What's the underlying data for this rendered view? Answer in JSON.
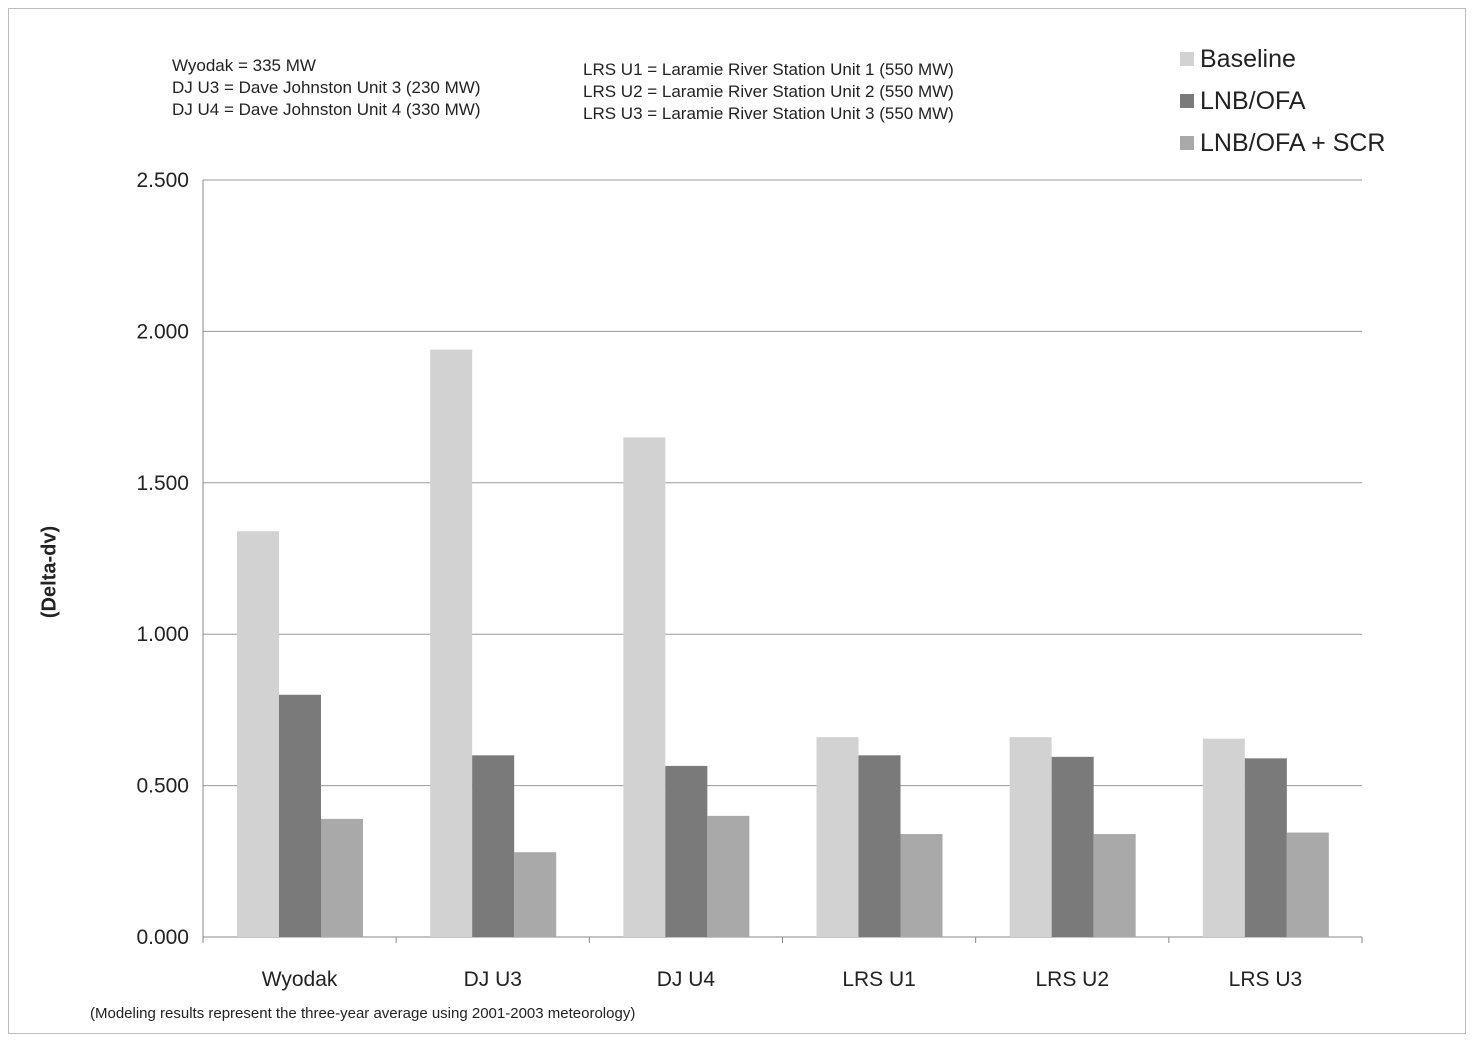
{
  "notes_left": [
    "Wyodak = 335 MW",
    "DJ U3 = Dave Johnston Unit 3 (230 MW)",
    "DJ U4 = Dave Johnston Unit 4 (330 MW)"
  ],
  "notes_right": [
    "LRS U1 = Laramie River Station Unit 1 (550 MW)",
    "LRS U2 = Laramie River Station Unit 2 (550 MW)",
    "LRS U3 = Laramie River Station Unit 3 (550 MW)"
  ],
  "footnote": "(Modeling results represent the three-year average using 2001-2003 meteorology)",
  "chart_data": {
    "type": "bar",
    "title": "",
    "xlabel": "",
    "ylabel": "(Delta-dv)",
    "ylim": [
      0,
      2.5
    ],
    "yticks": [
      "0.000",
      "0.500",
      "1.000",
      "1.500",
      "2.000",
      "2.500"
    ],
    "grid": true,
    "legend_position": "top-right",
    "categories": [
      "Wyodak",
      "DJ U3",
      "DJ U4",
      "LRS U1",
      "LRS U2",
      "LRS U3"
    ],
    "series": [
      {
        "name": "Baseline",
        "color": "#d2d2d2",
        "values": [
          1.34,
          1.94,
          1.65,
          0.66,
          0.66,
          0.655
        ]
      },
      {
        "name": "LNB/OFA",
        "color": "#7a7a7a",
        "values": [
          0.8,
          0.6,
          0.565,
          0.6,
          0.595,
          0.59
        ]
      },
      {
        "name": "LNB/OFA + SCR",
        "color": "#a9a9a9",
        "values": [
          0.39,
          0.28,
          0.4,
          0.34,
          0.34,
          0.345
        ]
      }
    ]
  }
}
